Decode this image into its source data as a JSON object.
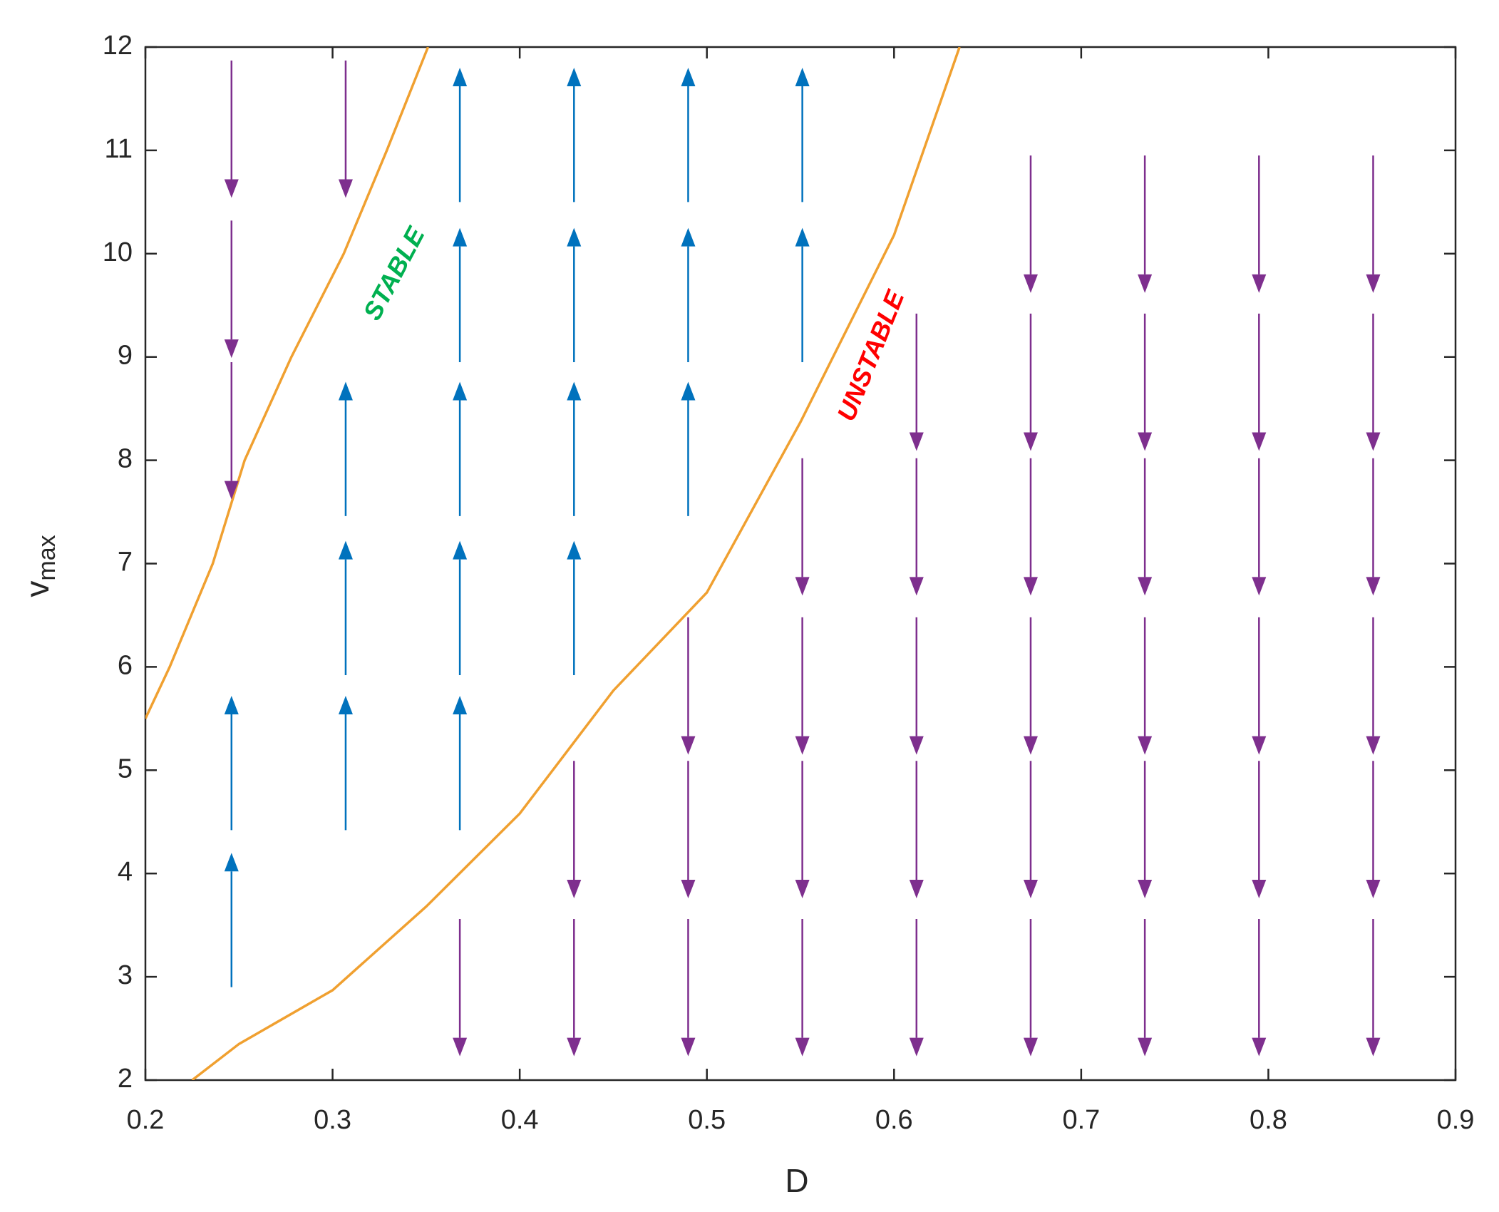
{
  "chart_data": {
    "type": "quiver",
    "xlabel": "D",
    "ylabel": "v",
    "ylabel_sub": "max",
    "xlim": [
      0.2,
      0.9
    ],
    "xticks": [
      0.2,
      0.3,
      0.4,
      0.5,
      0.6,
      0.7,
      0.8,
      0.9
    ],
    "ylim": [
      2,
      12
    ],
    "yticks": [
      2,
      3,
      4,
      5,
      6,
      7,
      8,
      9,
      10,
      11,
      12
    ],
    "curves": [
      {
        "color": "#F0A030",
        "x": [
          0.2,
          0.213,
          0.236,
          0.253,
          0.278,
          0.306,
          0.329,
          0.351
        ],
        "y": [
          5.5,
          6,
          7,
          8,
          9,
          10,
          11,
          12
        ]
      },
      {
        "color": "#F0A030",
        "x": [
          0.225,
          0.25,
          0.3,
          0.35,
          0.4,
          0.45,
          0.5,
          0.55,
          0.6,
          0.635
        ],
        "y": [
          2,
          2.35,
          2.87,
          3.68,
          4.58,
          5.77,
          6.72,
          8.37,
          10.18,
          12
        ]
      }
    ],
    "arrows": [
      {
        "color": "#0072BD",
        "x": [
          0.246,
          0.246,
          0.307,
          0.307,
          0.307,
          0.368,
          0.368,
          0.368,
          0.368,
          0.368,
          0.429,
          0.429,
          0.429,
          0.429,
          0.49,
          0.49,
          0.49,
          0.551,
          0.551
        ],
        "y": [
          2.9,
          4.42,
          4.42,
          5.92,
          7.46,
          4.42,
          5.92,
          7.46,
          8.95,
          10.5,
          5.92,
          7.46,
          8.95,
          10.5,
          7.46,
          8.95,
          10.5,
          8.95,
          10.5
        ],
        "dy": [
          1.3,
          1.3,
          1.3,
          1.3,
          1.3,
          1.3,
          1.3,
          1.3,
          1.3,
          1.3,
          1.3,
          1.3,
          1.3,
          1.3,
          1.3,
          1.3,
          1.3,
          1.3,
          1.3
        ]
      },
      {
        "color": "#7E2F8E",
        "x": [
          0.246,
          0.246,
          0.246,
          0.307,
          0.368,
          0.429,
          0.429,
          0.49,
          0.49,
          0.49,
          0.551,
          0.551,
          0.551,
          0.551,
          0.612,
          0.612,
          0.612,
          0.612,
          0.612,
          0.673,
          0.673,
          0.673,
          0.673,
          0.673,
          0.673,
          0.734,
          0.734,
          0.734,
          0.734,
          0.734,
          0.734,
          0.795,
          0.795,
          0.795,
          0.795,
          0.795,
          0.795,
          0.856,
          0.856,
          0.856,
          0.856,
          0.856,
          0.856
        ],
        "y": [
          11.87,
          10.32,
          8.95,
          11.87,
          3.56,
          5.09,
          3.56,
          6.48,
          5.09,
          3.56,
          8.02,
          6.48,
          5.09,
          3.56,
          9.42,
          8.02,
          6.48,
          5.09,
          3.56,
          10.95,
          9.42,
          8.02,
          6.48,
          5.09,
          3.56,
          10.95,
          9.42,
          8.02,
          6.48,
          5.09,
          3.56,
          10.95,
          9.42,
          8.02,
          6.48,
          5.09,
          3.56,
          10.95,
          9.42,
          8.02,
          6.48,
          5.09,
          3.56
        ],
        "dy": [
          -1.33,
          -1.33,
          -1.33,
          -1.33,
          -1.33,
          -1.33,
          -1.33,
          -1.33,
          -1.33,
          -1.33,
          -1.33,
          -1.33,
          -1.33,
          -1.33,
          -1.33,
          -1.33,
          -1.33,
          -1.33,
          -1.33,
          -1.33,
          -1.33,
          -1.33,
          -1.33,
          -1.33,
          -1.33,
          -1.33,
          -1.33,
          -1.33,
          -1.33,
          -1.33,
          -1.33,
          -1.33,
          -1.33,
          -1.33,
          -1.33,
          -1.33,
          -1.33,
          -1.33,
          -1.33,
          -1.33,
          -1.33,
          -1.33,
          -1.33
        ]
      }
    ],
    "annotations": [
      {
        "text": "STABLE",
        "color": "#00B050"
      },
      {
        "text": "UNSTABLE",
        "color": "#FF0000"
      }
    ]
  }
}
